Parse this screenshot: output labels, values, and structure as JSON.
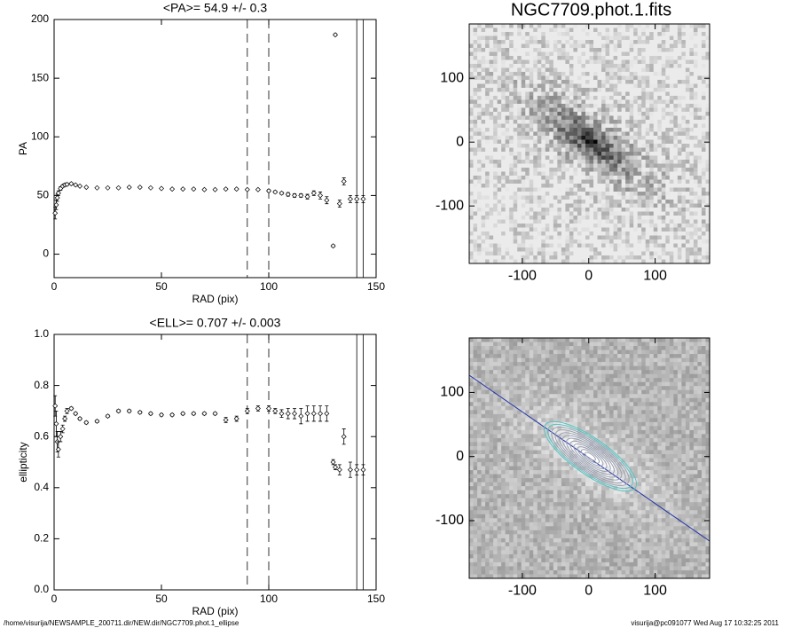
{
  "chart_data": [
    {
      "type": "scatter",
      "title": "<PA>=  54.9 +/-   0.3",
      "x_label": "RAD (pix)",
      "y_label": "PA",
      "x": [
        0.5,
        1,
        1.5,
        2,
        3,
        4,
        5,
        6,
        8,
        10,
        12,
        15,
        20,
        25,
        30,
        35,
        40,
        45,
        50,
        55,
        60,
        65,
        70,
        75,
        80,
        85,
        90,
        95,
        100,
        103,
        106,
        109,
        112,
        115,
        118,
        121,
        124,
        127,
        130,
        131,
        133,
        135,
        138,
        141,
        144
      ],
      "values": [
        35,
        42,
        48,
        52,
        56,
        58,
        59,
        59.5,
        60,
        59,
        58,
        57,
        56.5,
        56.5,
        56.5,
        57,
        57,
        56.5,
        56,
        55.5,
        55.5,
        55.5,
        55,
        55,
        55.5,
        55.5,
        55,
        55,
        54,
        53,
        52,
        51,
        50,
        50,
        49,
        52,
        50,
        46,
        7,
        187,
        43,
        62,
        47,
        47,
        47
      ],
      "errors": [
        5,
        4,
        3,
        2,
        1.5,
        1,
        1,
        1,
        0.8,
        0.5,
        0.5,
        0.5,
        0.5,
        0.5,
        0.5,
        0.5,
        0.5,
        0.5,
        0.5,
        0.5,
        0.5,
        0.5,
        0.5,
        0.5,
        0.5,
        0.5,
        0.5,
        0.5,
        1,
        1,
        1,
        1.5,
        1.5,
        1.5,
        2,
        2,
        3,
        3,
        1,
        1,
        3,
        3,
        3,
        3,
        3
      ],
      "xlim": [
        0,
        150
      ],
      "ylim": [
        -20,
        200
      ],
      "xticks": [
        0,
        50,
        100,
        150
      ],
      "yticks": [
        0,
        50,
        100,
        150,
        200
      ],
      "dashed_lines": [
        90,
        100
      ],
      "solid_lines": [
        141,
        144
      ],
      "color": "#000000"
    },
    {
      "type": "scatter",
      "title": "<ELL>= 0.707 +/-  0.003",
      "x_label": "RAD (pix)",
      "y_label": "ellipticity",
      "x": [
        0.5,
        1,
        1.5,
        2,
        3,
        4,
        5,
        6,
        8,
        10,
        12,
        15,
        20,
        25,
        30,
        35,
        40,
        45,
        50,
        55,
        60,
        65,
        70,
        75,
        80,
        85,
        90,
        95,
        100,
        103,
        106,
        109,
        112,
        115,
        118,
        121,
        124,
        127,
        130,
        131,
        133,
        135,
        138,
        141,
        144
      ],
      "values": [
        0.72,
        0.65,
        0.58,
        0.55,
        0.6,
        0.63,
        0.67,
        0.7,
        0.71,
        0.69,
        0.67,
        0.655,
        0.66,
        0.68,
        0.7,
        0.7,
        0.695,
        0.69,
        0.685,
        0.685,
        0.69,
        0.69,
        0.69,
        0.69,
        0.665,
        0.67,
        0.7,
        0.71,
        0.71,
        0.7,
        0.69,
        0.69,
        0.69,
        0.68,
        0.69,
        0.69,
        0.69,
        0.69,
        0.5,
        0.48,
        0.47,
        0.6,
        0.47,
        0.47,
        0.47
      ],
      "errors": [
        0.04,
        0.05,
        0.04,
        0.03,
        0.02,
        0.015,
        0.01,
        0.01,
        0.005,
        0.005,
        0.005,
        0.005,
        0.005,
        0.005,
        0.005,
        0.005,
        0.005,
        0.005,
        0.005,
        0.005,
        0.005,
        0.005,
        0.005,
        0.005,
        0.01,
        0.01,
        0.01,
        0.01,
        0.01,
        0.01,
        0.015,
        0.02,
        0.02,
        0.03,
        0.03,
        0.03,
        0.03,
        0.03,
        0.01,
        0.01,
        0.02,
        0.03,
        0.03,
        0.02,
        0.02
      ],
      "xlim": [
        0,
        150
      ],
      "ylim": [
        0,
        1
      ],
      "xticks": [
        0,
        50,
        100,
        150
      ],
      "yticks": [
        {
          "value": 0,
          "label": "0.0"
        },
        0.2,
        0.4,
        0.6,
        0.8,
        {
          "value": 1,
          "label": "1.0"
        }
      ],
      "dashed_lines": [
        90,
        100
      ],
      "solid_lines": [
        141,
        144
      ],
      "color": "#000000"
    },
    {
      "type": "image",
      "title": "NGC7709.phot.1.fits",
      "xlim": [
        -180,
        182
      ],
      "ylim": [
        -190,
        185
      ],
      "xticks": [
        -100,
        0,
        100
      ],
      "yticks": [
        -100,
        0,
        100
      ],
      "inverted": true
    },
    {
      "type": "image",
      "xlim": [
        -180,
        182
      ],
      "ylim": [
        -190,
        185
      ],
      "xticks": [
        -100,
        0,
        100
      ],
      "yticks": [
        -100,
        0,
        100
      ],
      "inverted": false,
      "contours": true
    }
  ],
  "footer_left": "/home/visurija/NEWSAMPLE_200711.dir/NEW.dir/NGC7709.phot.1_ellipse",
  "footer_right": "visurija@pc091077  Wed Aug 17 10:32:25 2011"
}
